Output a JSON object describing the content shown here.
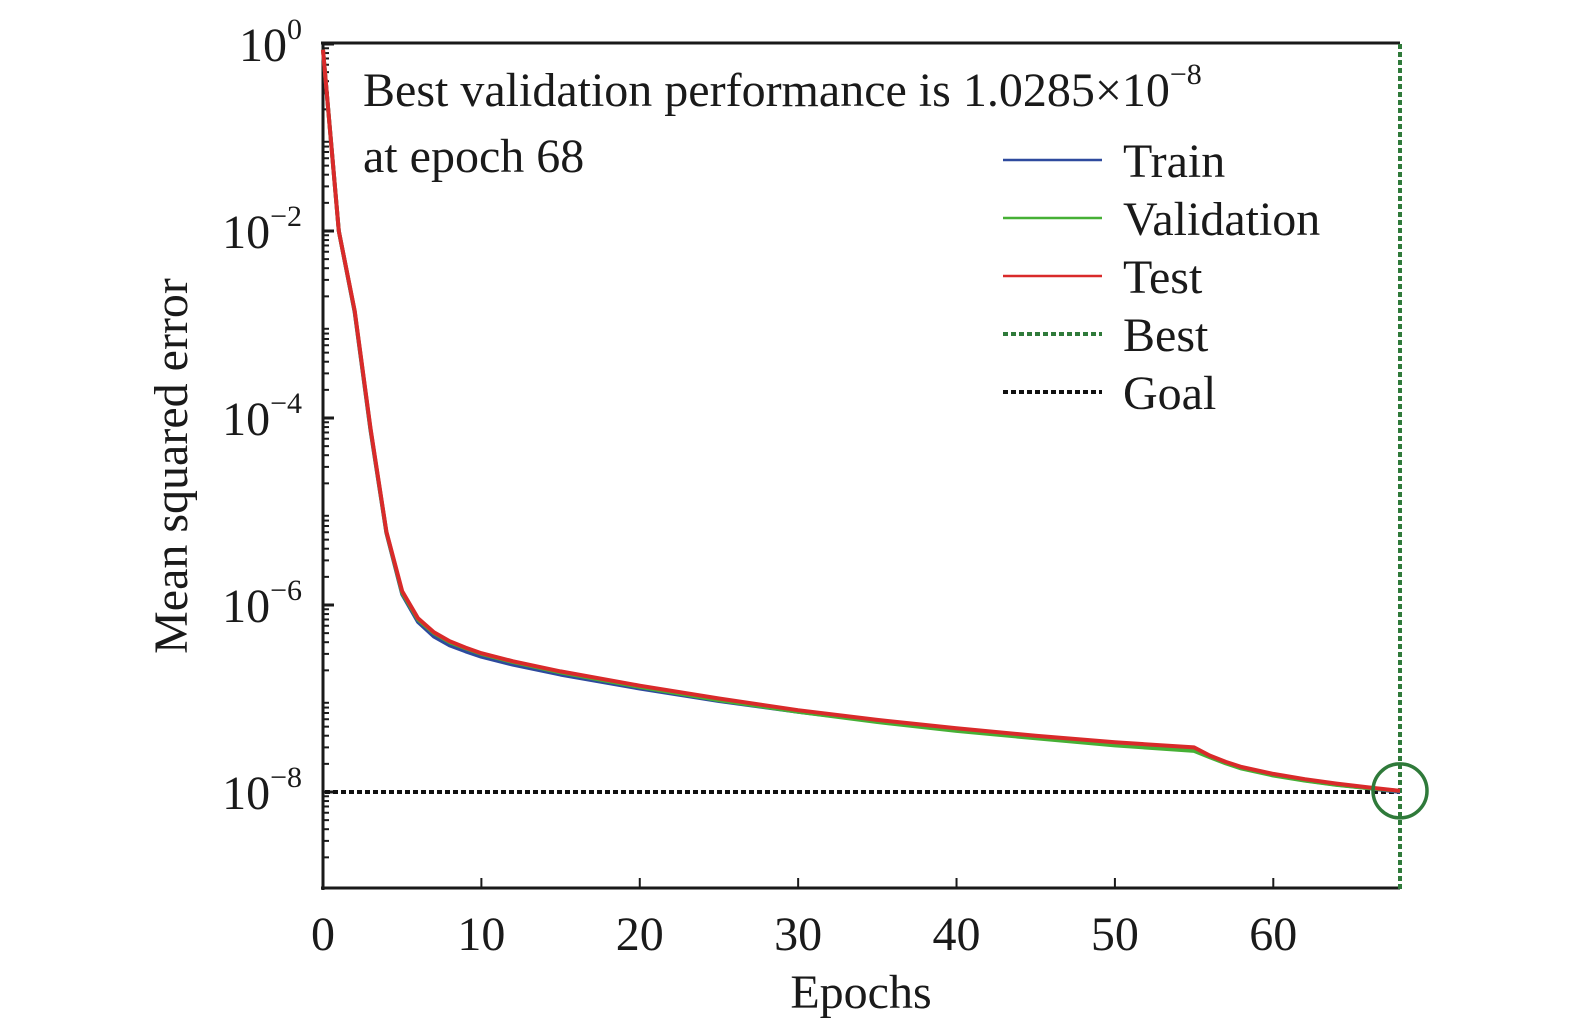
{
  "chart_data": {
    "type": "line",
    "title": "",
    "xlabel": "Epochs",
    "ylabel": "Mean squared error",
    "xlim": [
      0,
      68
    ],
    "ylim": [
      1e-09,
      1
    ],
    "yscale": "log",
    "grid": false,
    "legend_position": "top-right",
    "x_ticks": [
      0,
      10,
      20,
      30,
      40,
      50,
      60
    ],
    "x_tick_labels": [
      "0",
      "10",
      "20",
      "30",
      "40",
      "50",
      "60"
    ],
    "y_ticks": [
      {
        "exp": 0,
        "base": "10",
        "sup": "0"
      },
      {
        "exp": -2,
        "base": "10",
        "sup": "−2"
      },
      {
        "exp": -4,
        "base": "10",
        "sup": "−4"
      },
      {
        "exp": -6,
        "base": "10",
        "sup": "−6"
      },
      {
        "exp": -8,
        "base": "10",
        "sup": "−8"
      }
    ],
    "annotation": {
      "line1_prefix": "Best validation performance is 1.0285×10",
      "line1_sup": "−8",
      "line2": "at epoch 68"
    },
    "best_epoch": 68,
    "best_value": 1.0285e-08,
    "goal": 1e-08,
    "series": [
      {
        "name": "Train",
        "color": "#2e4a9e",
        "x": [
          0,
          1,
          2,
          3,
          4,
          5,
          6,
          7,
          8,
          9,
          10,
          12,
          15,
          20,
          25,
          30,
          35,
          40,
          45,
          50,
          55,
          56,
          57,
          58,
          60,
          62,
          64,
          66,
          68
        ],
        "y": [
          0.87,
          0.01,
          0.00135,
          7.4e-05,
          5.9e-06,
          1.3e-06,
          6.6e-07,
          4.6e-07,
          3.7e-07,
          3.2e-07,
          2.8e-07,
          2.3e-07,
          1.8e-07,
          1.28e-07,
          9.4e-08,
          7.2e-08,
          5.7e-08,
          4.6e-08,
          3.9e-08,
          3.3e-08,
          2.9e-08,
          2.4e-08,
          2.05e-08,
          1.8e-08,
          1.52e-08,
          1.33e-08,
          1.2e-08,
          1.1e-08,
          1e-08
        ]
      },
      {
        "name": "Validation",
        "color": "#46b035",
        "x": [
          0,
          1,
          2,
          3,
          4,
          5,
          6,
          7,
          8,
          9,
          10,
          12,
          15,
          20,
          25,
          30,
          35,
          40,
          45,
          50,
          55,
          56,
          57,
          58,
          60,
          62,
          64,
          66,
          68
        ],
        "y": [
          0.87,
          0.01,
          0.00138,
          7.6e-05,
          6e-06,
          1.35e-06,
          7e-07,
          5e-07,
          4e-07,
          3.45e-07,
          3e-07,
          2.45e-07,
          1.9e-07,
          1.33e-07,
          9.6e-08,
          7.2e-08,
          5.6e-08,
          4.5e-08,
          3.75e-08,
          3.15e-08,
          2.75e-08,
          2.35e-08,
          2.02e-08,
          1.78e-08,
          1.5e-08,
          1.32e-08,
          1.19e-08,
          1.1e-08,
          1.0285e-08
        ]
      },
      {
        "name": "Test",
        "color": "#d92a2a",
        "x": [
          0,
          1,
          2,
          3,
          4,
          5,
          6,
          7,
          8,
          9,
          10,
          12,
          15,
          20,
          25,
          30,
          35,
          40,
          45,
          50,
          55,
          56,
          57,
          58,
          60,
          62,
          64,
          66,
          68
        ],
        "y": [
          0.87,
          0.01,
          0.0014,
          7.8e-05,
          6.1e-06,
          1.4e-06,
          7.2e-07,
          5.1e-07,
          4.1e-07,
          3.5e-07,
          3.05e-07,
          2.5e-07,
          1.95e-07,
          1.37e-07,
          1e-07,
          7.5e-08,
          5.9e-08,
          4.8e-08,
          4e-08,
          3.4e-08,
          3e-08,
          2.45e-08,
          2.1e-08,
          1.85e-08,
          1.56e-08,
          1.37e-08,
          1.23e-08,
          1.12e-08,
          1.03e-08
        ]
      }
    ],
    "legend": [
      {
        "label": "Train",
        "color": "#2e4a9e",
        "style": "solid"
      },
      {
        "label": "Validation",
        "color": "#46b035",
        "style": "solid"
      },
      {
        "label": "Test",
        "color": "#d92a2a",
        "style": "solid"
      },
      {
        "label": "Best",
        "color": "#2f7a3a",
        "style": "dotted"
      },
      {
        "label": "Goal",
        "color": "#111111",
        "style": "dotted"
      }
    ]
  }
}
